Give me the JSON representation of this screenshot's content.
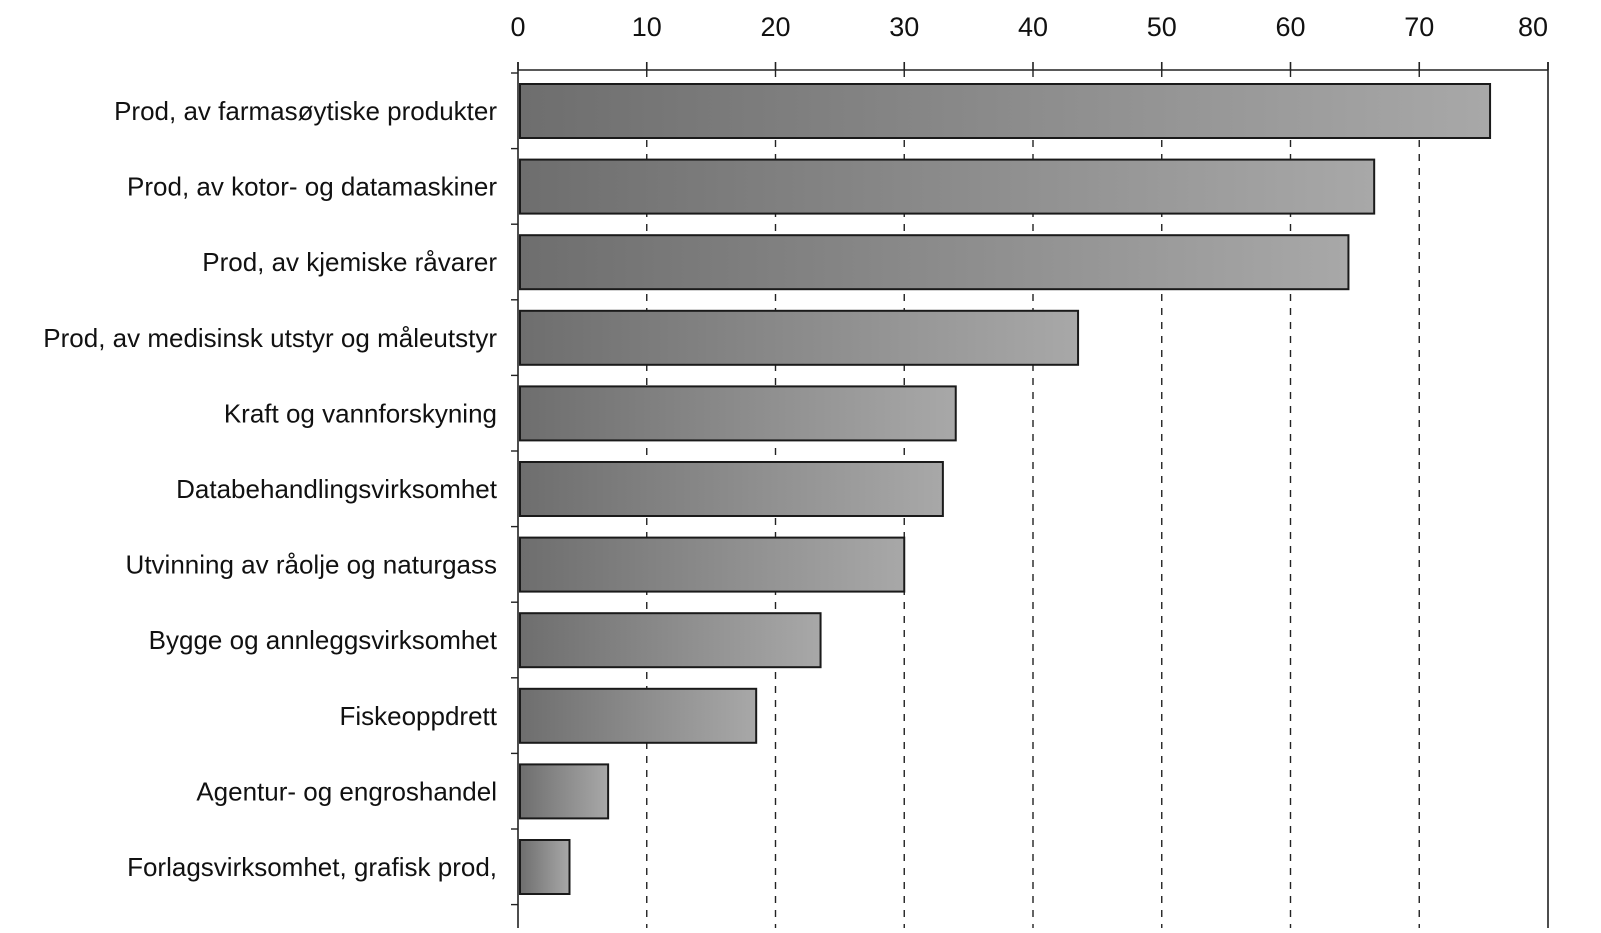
{
  "chart_data": {
    "type": "bar",
    "orientation": "horizontal",
    "title": "",
    "xlabel": "",
    "ylabel": "",
    "xlim": [
      0,
      80
    ],
    "x_ticks": [
      0,
      10,
      20,
      30,
      40,
      50,
      60,
      70,
      80
    ],
    "x_tick_labels": [
      "0",
      "10",
      "20",
      "30",
      "40",
      "50",
      "60",
      "70",
      "80"
    ],
    "x_axis_position": "top",
    "grid": "vertical dashed",
    "legend": "none",
    "categories": [
      "Prod, av farmasøytiske produkter",
      "Prod, av kotor- og datamaskiner",
      "Prod, av kjemiske råvarer",
      "Prod, av medisinsk utstyr og måleutstyr",
      "Kraft og vannforskyning",
      "Databehandlingsvirksomhet",
      "Utvinning av råolje og naturgass",
      "Bygge og annleggsvirksomhet",
      "Fiskeoppdrett",
      "Agentur- og engroshandel",
      "Forlagsvirksomhet, grafisk prod,"
    ],
    "values": [
      75.5,
      66.5,
      64.5,
      43.5,
      34,
      33,
      30,
      23.5,
      18.5,
      7,
      4
    ],
    "colors": {
      "bar_fill": "#8c8c8c",
      "bar_stroke": "#1a1a1a",
      "grid": "#222222",
      "axis": "#222222"
    }
  }
}
